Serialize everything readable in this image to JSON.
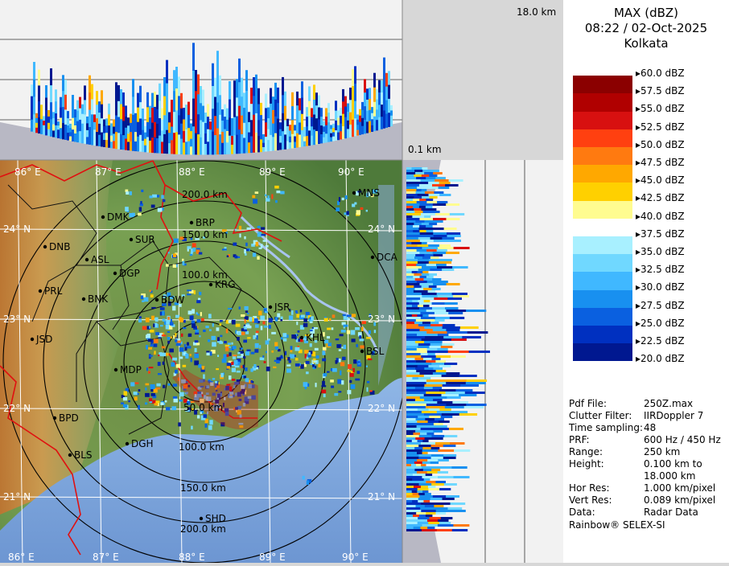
{
  "header": {
    "product": "MAX (dBZ)",
    "datetime": "08:22 / 02-Oct-2025",
    "station": "Kolkata"
  },
  "height_labels": {
    "top": "18.0 km",
    "bottom": "0.1 km"
  },
  "legend": {
    "levels": [
      {
        "label": "60.0 dBZ",
        "color": "#ffffff"
      },
      {
        "label": "57.5 dBZ",
        "color": "#8b0000"
      },
      {
        "label": "55.0 dBZ",
        "color": "#b00000"
      },
      {
        "label": "52.5 dBZ",
        "color": "#d81010"
      },
      {
        "label": "50.0 dBZ",
        "color": "#ff4010"
      },
      {
        "label": "47.5 dBZ",
        "color": "#ff7a10"
      },
      {
        "label": "45.0 dBZ",
        "color": "#ffa800"
      },
      {
        "label": "42.5 dBZ",
        "color": "#ffd000"
      },
      {
        "label": "40.0 dBZ",
        "color": "#fffc90"
      },
      {
        "label": "37.5 dBZ",
        "color": "#ffffff"
      },
      {
        "label": "35.0 dBZ",
        "color": "#a8f0ff"
      },
      {
        "label": "32.5 dBZ",
        "color": "#70d8ff"
      },
      {
        "label": "30.0 dBZ",
        "color": "#40b8ff"
      },
      {
        "label": "27.5 dBZ",
        "color": "#1890f0"
      },
      {
        "label": "25.0 dBZ",
        "color": "#0a60e0"
      },
      {
        "label": "22.5 dBZ",
        "color": "#0030c0"
      },
      {
        "label": "20.0 dBZ",
        "color": "#001890"
      }
    ]
  },
  "info": [
    {
      "key": "Pdf File:",
      "value": "250Z.max"
    },
    {
      "key": "Clutter Filter:",
      "value": "IIRDoppler 7"
    },
    {
      "key": "Time sampling:",
      "value": "48"
    },
    {
      "key": "PRF:",
      "value": "600 Hz / 450 Hz"
    },
    {
      "key": "Range:",
      "value": "250 km"
    },
    {
      "key": "Height:",
      "value": "0.100 km to"
    },
    {
      "key": "",
      "value": "18.000 km"
    },
    {
      "key": "Hor Res:",
      "value": "1.000 km/pixel"
    },
    {
      "key": "Vert Res:",
      "value": "0.089 km/pixel"
    },
    {
      "key": "Data:",
      "value": "Radar Data"
    }
  ],
  "footer": "Rainbow® SELEX-SI",
  "map": {
    "longitudes_top": [
      "86° E",
      "87° E",
      "88° E",
      "89° E",
      "90° E"
    ],
    "longitudes_bottom": [
      "86° E",
      "87° E",
      "88° E",
      "89° E",
      "90° E"
    ],
    "latitudes_left": [
      "24° N",
      "23° N",
      "22° N",
      "21° N"
    ],
    "latitudes_right": [
      "24° N",
      "23° N",
      "22° N",
      "21° N"
    ],
    "ring_labels": [
      "50.0 km",
      "100.0 km",
      "150.0 km",
      "200.0 km"
    ],
    "ring_labels_south": [
      "100.0 km",
      "150.0 km",
      "200.0 km"
    ],
    "cities": [
      "MNS",
      "DMK",
      "BRP",
      "DNB",
      "SUR",
      "ASL",
      "DCA",
      "DGP",
      "KRG",
      "PRL",
      "BNK",
      "BDW",
      "JSR",
      "JSD",
      "KHL",
      "BSL",
      "MDP",
      "BPD",
      "DGH",
      "BLS",
      "SHD"
    ]
  }
}
